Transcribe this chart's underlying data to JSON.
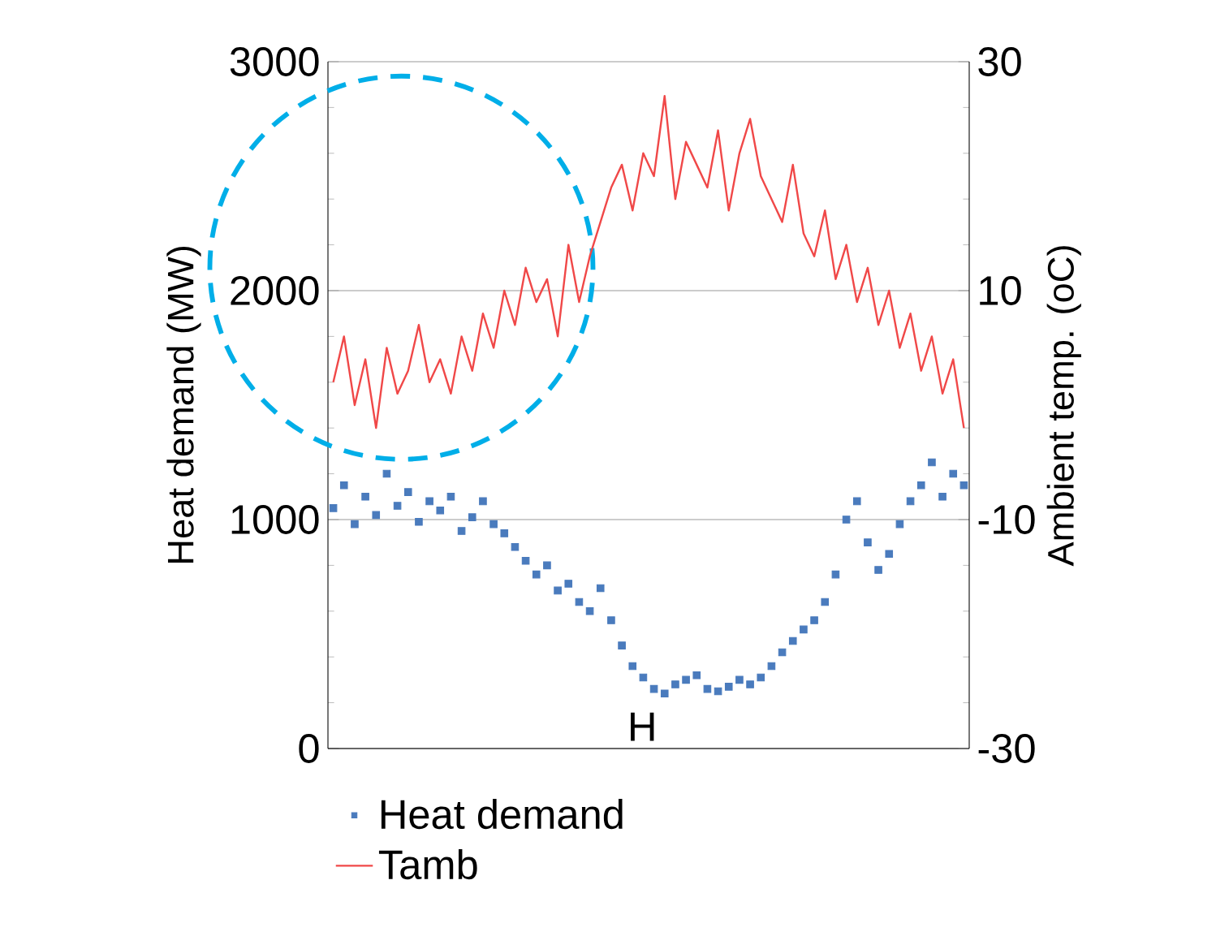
{
  "chart_data": {
    "type": "line",
    "categories": [
      null,
      null,
      null,
      null,
      null,
      null,
      null,
      null,
      null,
      null,
      null,
      null,
      null,
      null,
      null,
      null,
      null,
      null,
      null,
      null,
      null,
      null,
      null,
      null,
      null,
      null,
      null,
      null,
      null,
      null,
      null,
      null,
      null,
      null,
      null,
      null,
      null,
      null,
      null,
      null,
      null,
      null,
      null,
      null,
      null,
      null,
      null,
      null,
      null,
      null,
      null,
      null,
      null,
      null,
      null,
      null,
      null,
      null,
      null,
      null
    ],
    "series": [
      {
        "name": "Heat demand",
        "type": "scatter",
        "marker": "square",
        "color": "#4a7bbd",
        "values": [
          1050,
          1150,
          980,
          1100,
          1020,
          1200,
          1060,
          1120,
          990,
          1080,
          1040,
          1100,
          950,
          1010,
          1080,
          980,
          940,
          880,
          820,
          760,
          800,
          690,
          720,
          640,
          600,
          700,
          560,
          450,
          360,
          310,
          260,
          240,
          280,
          300,
          320,
          260,
          250,
          270,
          300,
          280,
          310,
          360,
          420,
          470,
          520,
          560,
          640,
          760,
          1000,
          1080,
          900,
          780,
          850,
          980,
          1080,
          1150,
          1250,
          1100,
          1200,
          1150
        ]
      },
      {
        "name": "Tamb",
        "axis": "y2",
        "color": "#f04848",
        "values": [
          2,
          6,
          0,
          4,
          -2,
          5,
          1,
          3,
          7,
          2,
          4,
          1,
          6,
          3,
          8,
          5,
          10,
          7,
          12,
          9,
          11,
          6,
          14,
          9,
          13,
          16,
          19,
          21,
          17,
          22,
          20,
          27,
          18,
          23,
          21,
          19,
          24,
          17,
          22,
          25,
          20,
          18,
          16,
          21,
          15,
          13,
          17,
          11,
          14,
          9,
          12,
          7,
          10,
          5,
          8,
          3,
          6,
          1,
          4,
          -2
        ]
      }
    ],
    "ylabel": "Heat demand (MW)",
    "y2label": "Ambient temp. (oC)",
    "ylim": [
      0,
      3000
    ],
    "yticks": [
      0,
      1000,
      2000,
      3000
    ],
    "y2lim": [
      -30,
      30
    ],
    "y2ticks": [
      -30,
      -10,
      10,
      30
    ],
    "grid": "y",
    "legend": "bottom",
    "annotations": [
      "H"
    ]
  }
}
